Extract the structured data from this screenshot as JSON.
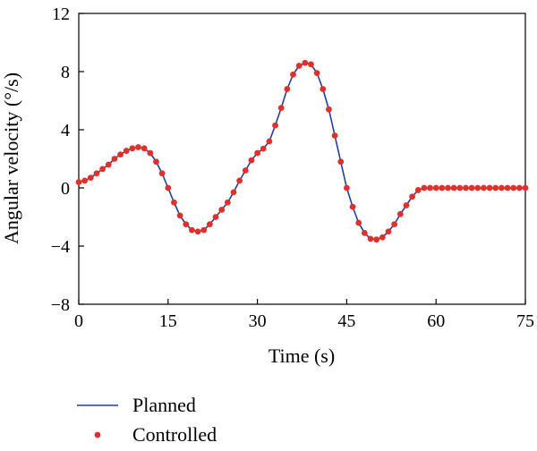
{
  "chart_data": {
    "type": "line",
    "xlabel": "Time (s)",
    "ylabel": "Angular velocity (°/s)",
    "xlim": [
      0,
      75
    ],
    "ylim": [
      -8,
      12
    ],
    "xticks": [
      0,
      15,
      30,
      45,
      60,
      75
    ],
    "yticks": [
      -8,
      -4,
      0,
      4,
      8,
      12
    ],
    "xtick_labels": [
      "0",
      "15",
      "30",
      "45",
      "60",
      "75"
    ],
    "ytick_labels": [
      "−8",
      "−4",
      "0",
      "4",
      "8",
      "12"
    ],
    "grid": false,
    "legend_position": "bottom-left",
    "series": [
      {
        "name": "Planned",
        "style": "line",
        "color": "#1f3fa0",
        "x": [
          0,
          1,
          2,
          3,
          4,
          5,
          6,
          7,
          8,
          9,
          10,
          11,
          12,
          13,
          14,
          15,
          16,
          17,
          18,
          19,
          20,
          21,
          22,
          23,
          24,
          25,
          26,
          27,
          28,
          29,
          30,
          31,
          32,
          33,
          34,
          35,
          36,
          37,
          38,
          39,
          40,
          41,
          42,
          43,
          44,
          45,
          46,
          47,
          48,
          49,
          50,
          51,
          52,
          53,
          54,
          55,
          56,
          57,
          58,
          59,
          60,
          61,
          62,
          63,
          64,
          65,
          66,
          67,
          68,
          69,
          70,
          71,
          72,
          73,
          74,
          75
        ],
        "y": [
          0.4,
          0.5,
          0.7,
          1.0,
          1.3,
          1.6,
          2.0,
          2.3,
          2.55,
          2.72,
          2.8,
          2.72,
          2.4,
          1.8,
          1.0,
          0.0,
          -1.0,
          -1.9,
          -2.5,
          -2.9,
          -3.0,
          -2.9,
          -2.5,
          -2.0,
          -1.5,
          -1.0,
          -0.3,
          0.5,
          1.2,
          1.9,
          2.4,
          2.7,
          3.2,
          4.3,
          5.5,
          6.8,
          7.8,
          8.4,
          8.6,
          8.5,
          7.9,
          6.8,
          5.4,
          3.6,
          1.8,
          0.0,
          -1.3,
          -2.4,
          -3.1,
          -3.5,
          -3.55,
          -3.4,
          -3.0,
          -2.5,
          -1.8,
          -1.2,
          -0.6,
          -0.15,
          0.0,
          0.0,
          0.0,
          0.0,
          0.0,
          0.0,
          0.0,
          0.0,
          0.0,
          0.0,
          0.0,
          0.0,
          0.0,
          0.0,
          0.0,
          0.0,
          0.0,
          0.0
        ]
      },
      {
        "name": "Controlled",
        "style": "markers",
        "color": "#e0302b",
        "x": [
          0,
          1,
          2,
          3,
          4,
          5,
          6,
          7,
          8,
          9,
          10,
          11,
          12,
          13,
          14,
          15,
          16,
          17,
          18,
          19,
          20,
          21,
          22,
          23,
          24,
          25,
          26,
          27,
          28,
          29,
          30,
          31,
          32,
          33,
          34,
          35,
          36,
          37,
          38,
          39,
          40,
          41,
          42,
          43,
          44,
          45,
          46,
          47,
          48,
          49,
          50,
          51,
          52,
          53,
          54,
          55,
          56,
          57,
          58,
          59,
          60,
          61,
          62,
          63,
          64,
          65,
          66,
          67,
          68,
          69,
          70,
          71,
          72,
          73,
          74,
          75
        ],
        "y": [
          0.4,
          0.5,
          0.7,
          1.0,
          1.3,
          1.6,
          2.0,
          2.3,
          2.55,
          2.72,
          2.8,
          2.72,
          2.4,
          1.8,
          1.0,
          0.0,
          -1.0,
          -1.9,
          -2.5,
          -2.9,
          -3.0,
          -2.9,
          -2.5,
          -2.0,
          -1.5,
          -1.0,
          -0.3,
          0.5,
          1.2,
          1.9,
          2.4,
          2.7,
          3.2,
          4.3,
          5.5,
          6.8,
          7.8,
          8.4,
          8.6,
          8.5,
          7.9,
          6.8,
          5.4,
          3.6,
          1.8,
          0.0,
          -1.3,
          -2.4,
          -3.1,
          -3.5,
          -3.55,
          -3.4,
          -3.0,
          -2.5,
          -1.8,
          -1.2,
          -0.6,
          -0.15,
          0.0,
          0.0,
          0.0,
          0.0,
          0.0,
          0.0,
          0.0,
          0.0,
          0.0,
          0.0,
          0.0,
          0.0,
          0.0,
          0.0,
          0.0,
          0.0,
          0.0,
          0.0
        ]
      }
    ]
  }
}
